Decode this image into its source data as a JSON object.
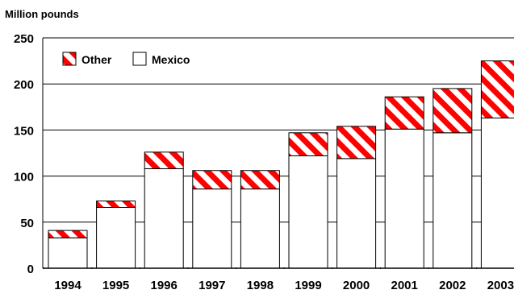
{
  "chart_data": {
    "type": "bar",
    "stacked": true,
    "unit_label": "Million pounds",
    "categories": [
      "1994",
      "1995",
      "1996",
      "1997",
      "1998",
      "1999",
      "2000",
      "2001",
      "2002",
      "2003"
    ],
    "series": [
      {
        "name": "Mexico",
        "values": [
          33,
          66,
          108,
          86,
          86,
          122,
          119,
          151,
          147,
          163
        ],
        "color": "#ffffff"
      },
      {
        "name": "Other",
        "values": [
          8,
          7,
          18,
          20,
          20,
          25,
          35,
          35,
          48,
          62
        ],
        "color": "#ff0000",
        "pattern": "diagonal-stripes"
      }
    ],
    "ylim": [
      0,
      250
    ],
    "yticks": [
      0,
      50,
      100,
      150,
      200,
      250
    ],
    "grid": true,
    "legend_placement": "top-left"
  }
}
